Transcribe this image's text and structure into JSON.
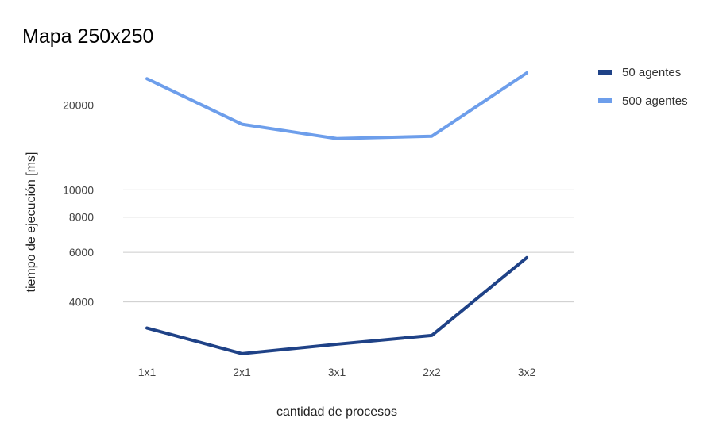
{
  "chart_data": {
    "type": "line",
    "title": "Mapa 250x250",
    "xlabel": "cantidad de procesos",
    "ylabel": "tiempo de ejecución [ms]",
    "yscale": "log",
    "ylim": [
      2600,
      26000
    ],
    "yticks": [
      {
        "value": 4000,
        "label": "4000"
      },
      {
        "value": 6000,
        "label": "6000"
      },
      {
        "value": 8000,
        "label": "8000"
      },
      {
        "value": 10000,
        "label": "10000"
      },
      {
        "value": 20000,
        "label": "20000"
      }
    ],
    "grid": true,
    "legend": "right",
    "categories": [
      "1x1",
      "2x1",
      "3x1",
      "2x2",
      "3x2"
    ],
    "series": [
      {
        "name": "50 agentes",
        "color": "#1f4287",
        "values": [
          3230,
          2620,
          2830,
          3040,
          5740
        ]
      },
      {
        "name": "500 agentes",
        "color": "#6d9eeb",
        "values": [
          24800,
          17100,
          15200,
          15500,
          26000
        ]
      }
    ]
  }
}
